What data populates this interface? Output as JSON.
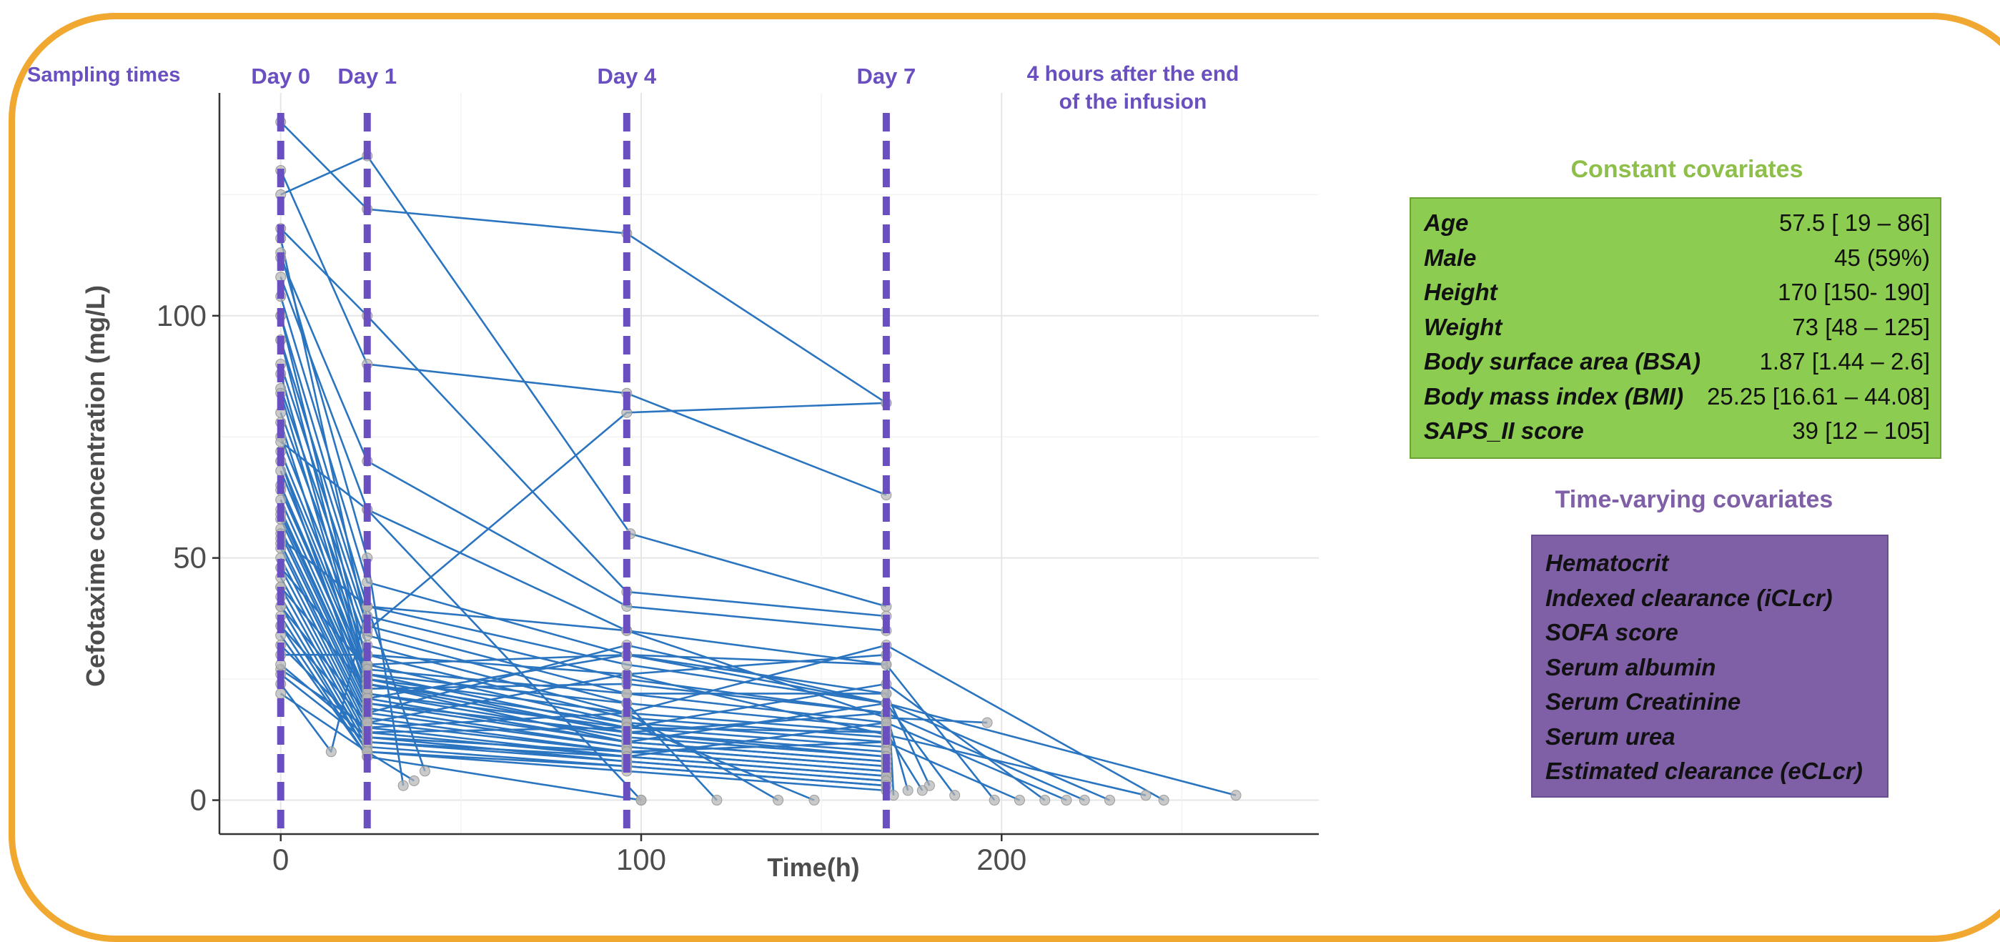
{
  "chart_data": {
    "type": "line",
    "xlabel": "Time(h)",
    "ylabel": "Cefotaxime concentration (mg/L)",
    "xlim": [
      -17,
      288
    ],
    "ylim": [
      -7,
      146
    ],
    "xticks": [
      0,
      100,
      200
    ],
    "yticks": [
      0,
      50,
      100
    ],
    "grid": true,
    "sampling_label": "Sampling times",
    "sampling_times": [
      {
        "x": 0,
        "label": "Day 0"
      },
      {
        "x": 24,
        "label": "Day 1"
      },
      {
        "x": 96,
        "label": "Day 4"
      },
      {
        "x": 168,
        "label": "Day 7"
      }
    ],
    "end_note": "4 hours after the end\nof the infusion",
    "line_color": "#2a74c0",
    "sampling_line_color": "#6a4fc0",
    "series": [
      {
        "x": [
          0,
          24,
          96,
          168
        ],
        "y": [
          140,
          122,
          117,
          82
        ]
      },
      {
        "x": [
          0,
          24,
          96,
          168
        ],
        "y": [
          130,
          90,
          84,
          63
        ]
      },
      {
        "x": [
          0,
          24,
          97,
          168
        ],
        "y": [
          125,
          133,
          55,
          40
        ]
      },
      {
        "x": [
          0,
          24,
          96,
          168
        ],
        "y": [
          118,
          100,
          43,
          38
        ]
      },
      {
        "x": [
          0,
          24,
          96,
          168
        ],
        "y": [
          112,
          70,
          40,
          35
        ]
      },
      {
        "x": [
          0,
          24,
          96,
          168
        ],
        "y": [
          108,
          60,
          35,
          28
        ]
      },
      {
        "x": [
          0,
          24,
          96,
          168
        ],
        "y": [
          104,
          45,
          30,
          22
        ]
      },
      {
        "x": [
          0,
          24,
          96,
          168
        ],
        "y": [
          100,
          40,
          28,
          20
        ]
      },
      {
        "x": [
          0,
          24,
          96,
          168
        ],
        "y": [
          95,
          38,
          25,
          18
        ]
      },
      {
        "x": [
          0,
          24,
          96,
          168
        ],
        "y": [
          90,
          36,
          22,
          16
        ]
      },
      {
        "x": [
          0,
          24,
          96,
          168
        ],
        "y": [
          85,
          34,
          20,
          15
        ]
      },
      {
        "x": [
          0,
          24,
          96,
          168
        ],
        "y": [
          80,
          32,
          18,
          14
        ]
      },
      {
        "x": [
          0,
          24,
          96,
          168
        ],
        "y": [
          75,
          30,
          17,
          13
        ]
      },
      {
        "x": [
          0,
          24,
          96,
          168
        ],
        "y": [
          72,
          28,
          16,
          12
        ]
      },
      {
        "x": [
          0,
          24,
          96,
          168
        ],
        "y": [
          70,
          26,
          15,
          11
        ]
      },
      {
        "x": [
          0,
          24,
          96,
          168
        ],
        "y": [
          68,
          25,
          14,
          10
        ]
      },
      {
        "x": [
          0,
          24,
          96,
          168
        ],
        "y": [
          65,
          24,
          14,
          9
        ]
      },
      {
        "x": [
          0,
          24,
          96,
          168
        ],
        "y": [
          62,
          22,
          13,
          9
        ]
      },
      {
        "x": [
          0,
          24,
          96,
          168
        ],
        "y": [
          60,
          21,
          12,
          8
        ]
      },
      {
        "x": [
          0,
          24,
          96,
          168
        ],
        "y": [
          58,
          20,
          12,
          8
        ]
      },
      {
        "x": [
          0,
          24,
          96,
          168
        ],
        "y": [
          56,
          19,
          11,
          7
        ]
      },
      {
        "x": [
          0,
          24,
          96,
          168
        ],
        "y": [
          55,
          18,
          11,
          7
        ]
      },
      {
        "x": [
          0,
          24,
          96,
          168
        ],
        "y": [
          53,
          17,
          10,
          6
        ]
      },
      {
        "x": [
          0,
          24,
          96,
          168
        ],
        "y": [
          52,
          16,
          10,
          6
        ]
      },
      {
        "x": [
          0,
          24,
          96,
          168
        ],
        "y": [
          50,
          15,
          9,
          5
        ]
      },
      {
        "x": [
          0,
          24,
          96,
          168
        ],
        "y": [
          48,
          14,
          9,
          5
        ]
      },
      {
        "x": [
          0,
          24,
          96,
          168
        ],
        "y": [
          46,
          13,
          8,
          4
        ]
      },
      {
        "x": [
          0,
          24,
          96,
          168
        ],
        "y": [
          44,
          12,
          8,
          4
        ]
      },
      {
        "x": [
          0,
          24,
          96,
          168
        ],
        "y": [
          42,
          11,
          7,
          3
        ]
      },
      {
        "x": [
          0,
          24,
          96,
          168
        ],
        "y": [
          40,
          10,
          7,
          3
        ]
      },
      {
        "x": [
          0,
          24,
          96,
          168
        ],
        "y": [
          38,
          10,
          6,
          2
        ]
      },
      {
        "x": [
          0,
          24
        ],
        "y": [
          36,
          9
        ]
      },
      {
        "x": [
          0,
          24,
          100
        ],
        "y": [
          34,
          9,
          0
        ]
      },
      {
        "x": [
          0,
          24,
          96,
          240
        ],
        "y": [
          30,
          30,
          26,
          1
        ]
      },
      {
        "x": [
          0,
          24,
          96,
          168,
          245
        ],
        "y": [
          27,
          15,
          18,
          32,
          0
        ]
      },
      {
        "x": [
          0,
          14,
          24,
          40
        ],
        "y": [
          24,
          10,
          40,
          6
        ]
      },
      {
        "x": [
          0,
          24,
          37
        ],
        "y": [
          22,
          10,
          4
        ]
      },
      {
        "x": [
          0,
          24,
          34
        ],
        "y": [
          113,
          50,
          3
        ]
      },
      {
        "x": [
          0,
          24,
          100
        ],
        "y": [
          74,
          60,
          0
        ]
      },
      {
        "x": [
          0,
          24,
          96,
          168
        ],
        "y": [
          116,
          35,
          80,
          82
        ]
      },
      {
        "x": [
          0,
          24,
          96,
          168,
          198
        ],
        "y": [
          100,
          28,
          30,
          28,
          0
        ]
      },
      {
        "x": [
          0,
          24,
          96,
          121
        ],
        "y": [
          95,
          26,
          20,
          0
        ]
      },
      {
        "x": [
          0,
          24,
          96,
          138
        ],
        "y": [
          88,
          25,
          18,
          0
        ]
      },
      {
        "x": [
          0,
          24,
          96,
          148
        ],
        "y": [
          84,
          24,
          16,
          0
        ]
      },
      {
        "x": [
          0,
          24,
          96,
          168,
          212
        ],
        "y": [
          78,
          22,
          15,
          24,
          0
        ]
      },
      {
        "x": [
          0,
          24,
          96,
          168,
          223
        ],
        "y": [
          70,
          20,
          14,
          18,
          0
        ]
      },
      {
        "x": [
          0,
          24,
          96,
          168,
          230
        ],
        "y": [
          64,
          24,
          12,
          20,
          0
        ]
      },
      {
        "x": [
          0,
          24,
          96,
          168,
          265
        ],
        "y": [
          59,
          21,
          30,
          20,
          1
        ]
      },
      {
        "x": [
          0,
          24,
          96,
          168,
          196
        ],
        "y": [
          54,
          40,
          35,
          17,
          16
        ]
      },
      {
        "x": [
          0,
          24,
          96,
          168,
          180
        ],
        "y": [
          48,
          27,
          22,
          22,
          3
        ]
      },
      {
        "x": [
          0,
          24,
          96,
          168,
          174
        ],
        "y": [
          44,
          23,
          24,
          18,
          2
        ]
      },
      {
        "x": [
          0,
          24,
          96,
          168,
          187
        ],
        "y": [
          40,
          18,
          32,
          20,
          1
        ]
      },
      {
        "x": [
          0,
          24,
          96,
          168,
          170
        ],
        "y": [
          36,
          16,
          26,
          30,
          1
        ]
      },
      {
        "x": [
          0,
          24,
          96,
          168,
          178
        ],
        "y": [
          32,
          14,
          15,
          14,
          2
        ]
      },
      {
        "x": [
          0,
          24,
          96,
          168,
          205
        ],
        "y": [
          28,
          13,
          10,
          12,
          0
        ]
      },
      {
        "x": [
          0,
          24,
          96,
          168,
          218
        ],
        "y": [
          26,
          12,
          9,
          16,
          0
        ]
      }
    ]
  },
  "constant_covariates": {
    "title": "Constant  covariates",
    "rows": [
      {
        "label": "Age",
        "value": "57.5 [ 19 – 86]"
      },
      {
        "label": "Male",
        "value": "45 (59%)"
      },
      {
        "label": "Height",
        "value": "170 [150- 190]"
      },
      {
        "label": "Weight",
        "value": "73  [48 – 125]"
      },
      {
        "label": "Body surface area (BSA)",
        "value": "1.87  [1.44 – 2.6]"
      },
      {
        "label": "Body mass index (BMI)",
        "value": "25.25 [16.61 – 44.08]"
      },
      {
        "label": "SAPS_II score",
        "value": "39 [12 – 105]"
      }
    ]
  },
  "time_varying_covariates": {
    "title": "Time-varying  covariates",
    "items": [
      "Hematocrit",
      "Indexed clearance (iCLcr)",
      "SOFA score",
      "Serum albumin",
      "Serum Creatinine",
      "Serum urea",
      "Estimated clearance (eCLcr)"
    ]
  },
  "colors": {
    "frame": "#f0a830",
    "constant_box": "#8ccc50",
    "constant_title": "#8dbf4a",
    "time_varying_box": "#7f5fa6",
    "time_varying_title": "#7f5fa6",
    "sampling_text": "#6a4fc0"
  }
}
